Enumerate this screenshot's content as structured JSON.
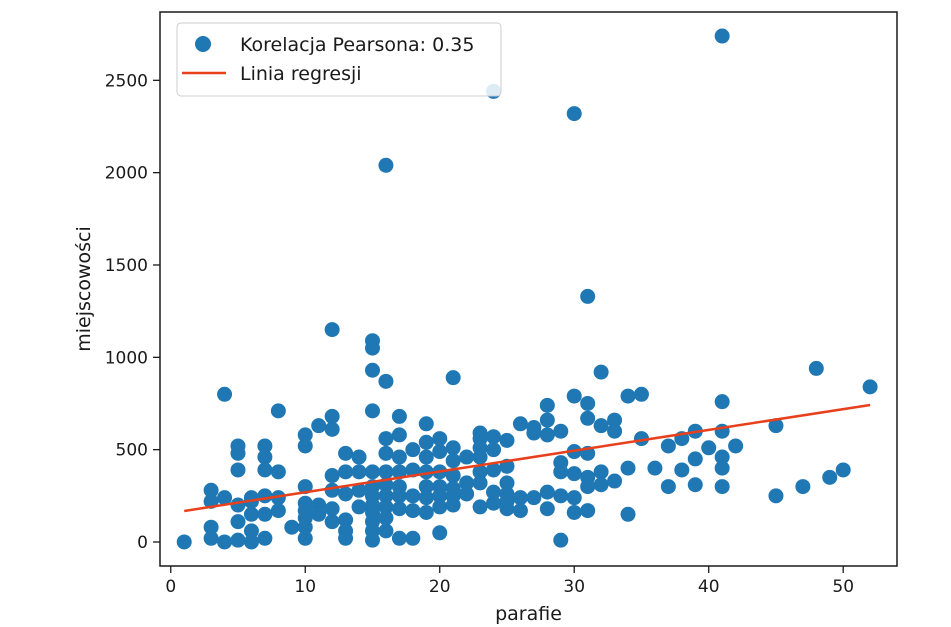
{
  "chart_data": {
    "type": "scatter",
    "xlabel": "parafie",
    "ylabel": "miejscowości",
    "xlim": [
      -0.8,
      54.0
    ],
    "ylim": [
      -130,
      2870
    ],
    "xticks": [
      0,
      10,
      20,
      30,
      40,
      50
    ],
    "yticks": [
      0,
      500,
      1000,
      1500,
      2000,
      2500
    ],
    "grid": false,
    "legend": {
      "placement": "top-left",
      "entries": [
        {
          "label": "Korelacja Pearsona: 0.35",
          "marker": "circle",
          "color": "#1f77b4"
        },
        {
          "label": "Linia regresji",
          "marker": "line",
          "color": "#e8401c"
        }
      ]
    },
    "series": [
      {
        "name": "Korelacja Pearsona: 0.35",
        "kind": "scatter",
        "color": "#1f77b4",
        "points": [
          [
            1,
            0
          ],
          [
            3,
            280
          ],
          [
            3,
            220
          ],
          [
            3,
            80
          ],
          [
            3,
            20
          ],
          [
            4,
            800
          ],
          [
            4,
            240
          ],
          [
            4,
            0
          ],
          [
            5,
            520
          ],
          [
            5,
            480
          ],
          [
            5,
            390
          ],
          [
            5,
            200
          ],
          [
            5,
            110
          ],
          [
            5,
            10
          ],
          [
            6,
            240
          ],
          [
            6,
            220
          ],
          [
            6,
            150
          ],
          [
            6,
            60
          ],
          [
            6,
            0
          ],
          [
            7,
            520
          ],
          [
            7,
            460
          ],
          [
            7,
            390
          ],
          [
            7,
            250
          ],
          [
            7,
            150
          ],
          [
            7,
            20
          ],
          [
            8,
            710
          ],
          [
            8,
            380
          ],
          [
            8,
            240
          ],
          [
            8,
            170
          ],
          [
            9,
            80
          ],
          [
            10,
            580
          ],
          [
            10,
            520
          ],
          [
            10,
            300
          ],
          [
            10,
            210
          ],
          [
            10,
            170
          ],
          [
            10,
            130
          ],
          [
            10,
            80
          ],
          [
            10,
            20
          ],
          [
            11,
            630
          ],
          [
            11,
            200
          ],
          [
            11,
            150
          ],
          [
            12,
            1150
          ],
          [
            12,
            680
          ],
          [
            12,
            610
          ],
          [
            12,
            360
          ],
          [
            12,
            280
          ],
          [
            12,
            180
          ],
          [
            12,
            110
          ],
          [
            13,
            480
          ],
          [
            13,
            380
          ],
          [
            13,
            260
          ],
          [
            13,
            120
          ],
          [
            13,
            60
          ],
          [
            13,
            20
          ],
          [
            14,
            460
          ],
          [
            14,
            380
          ],
          [
            14,
            280
          ],
          [
            14,
            190
          ],
          [
            15,
            1090
          ],
          [
            15,
            1050
          ],
          [
            15,
            930
          ],
          [
            15,
            710
          ],
          [
            15,
            380
          ],
          [
            15,
            300
          ],
          [
            15,
            250
          ],
          [
            15,
            200
          ],
          [
            15,
            160
          ],
          [
            15,
            110
          ],
          [
            15,
            60
          ],
          [
            15,
            10
          ],
          [
            16,
            870
          ],
          [
            16,
            2040
          ],
          [
            16,
            560
          ],
          [
            16,
            480
          ],
          [
            16,
            380
          ],
          [
            16,
            310
          ],
          [
            16,
            250
          ],
          [
            16,
            190
          ],
          [
            16,
            130
          ],
          [
            16,
            60
          ],
          [
            17,
            680
          ],
          [
            17,
            580
          ],
          [
            17,
            460
          ],
          [
            17,
            380
          ],
          [
            17,
            300
          ],
          [
            17,
            250
          ],
          [
            17,
            180
          ],
          [
            17,
            20
          ],
          [
            18,
            500
          ],
          [
            18,
            390
          ],
          [
            18,
            250
          ],
          [
            18,
            170
          ],
          [
            18,
            20
          ],
          [
            19,
            640
          ],
          [
            19,
            540
          ],
          [
            19,
            460
          ],
          [
            19,
            380
          ],
          [
            19,
            300
          ],
          [
            19,
            240
          ],
          [
            19,
            160
          ],
          [
            20,
            560
          ],
          [
            20,
            490
          ],
          [
            20,
            380
          ],
          [
            20,
            300
          ],
          [
            20,
            250
          ],
          [
            20,
            190
          ],
          [
            20,
            50
          ],
          [
            21,
            890
          ],
          [
            21,
            510
          ],
          [
            21,
            440
          ],
          [
            21,
            360
          ],
          [
            21,
            290
          ],
          [
            21,
            250
          ],
          [
            21,
            200
          ],
          [
            22,
            460
          ],
          [
            22,
            320
          ],
          [
            22,
            260
          ],
          [
            23,
            590
          ],
          [
            23,
            560
          ],
          [
            23,
            510
          ],
          [
            23,
            460
          ],
          [
            23,
            380
          ],
          [
            23,
            320
          ],
          [
            23,
            190
          ],
          [
            24,
            2440
          ],
          [
            24,
            570
          ],
          [
            24,
            500
          ],
          [
            24,
            390
          ],
          [
            24,
            270
          ],
          [
            24,
            210
          ],
          [
            25,
            550
          ],
          [
            25,
            410
          ],
          [
            25,
            320
          ],
          [
            25,
            260
          ],
          [
            25,
            220
          ],
          [
            25,
            180
          ],
          [
            26,
            640
          ],
          [
            26,
            240
          ],
          [
            26,
            170
          ],
          [
            27,
            620
          ],
          [
            27,
            590
          ],
          [
            27,
            240
          ],
          [
            28,
            740
          ],
          [
            28,
            660
          ],
          [
            28,
            580
          ],
          [
            28,
            270
          ],
          [
            28,
            180
          ],
          [
            29,
            600
          ],
          [
            29,
            430
          ],
          [
            29,
            380
          ],
          [
            29,
            250
          ],
          [
            29,
            10
          ],
          [
            30,
            2320
          ],
          [
            30,
            790
          ],
          [
            30,
            490
          ],
          [
            30,
            370
          ],
          [
            30,
            240
          ],
          [
            30,
            160
          ],
          [
            31,
            1330
          ],
          [
            31,
            750
          ],
          [
            31,
            670
          ],
          [
            31,
            480
          ],
          [
            31,
            350
          ],
          [
            31,
            300
          ],
          [
            31,
            170
          ],
          [
            32,
            920
          ],
          [
            32,
            630
          ],
          [
            32,
            380
          ],
          [
            32,
            310
          ],
          [
            33,
            660
          ],
          [
            33,
            600
          ],
          [
            33,
            330
          ],
          [
            34,
            790
          ],
          [
            34,
            400
          ],
          [
            34,
            150
          ],
          [
            35,
            800
          ],
          [
            35,
            560
          ],
          [
            36,
            400
          ],
          [
            37,
            520
          ],
          [
            37,
            300
          ],
          [
            38,
            560
          ],
          [
            38,
            390
          ],
          [
            39,
            600
          ],
          [
            39,
            450
          ],
          [
            39,
            310
          ],
          [
            40,
            510
          ],
          [
            41,
            2740
          ],
          [
            41,
            760
          ],
          [
            41,
            600
          ],
          [
            41,
            460
          ],
          [
            41,
            400
          ],
          [
            41,
            300
          ],
          [
            42,
            520
          ],
          [
            45,
            630
          ],
          [
            45,
            250
          ],
          [
            47,
            300
          ],
          [
            48,
            940
          ],
          [
            49,
            350
          ],
          [
            50,
            390
          ],
          [
            52,
            840
          ]
        ]
      },
      {
        "name": "Linia regresji",
        "kind": "line",
        "color": "#e8401c",
        "points": [
          [
            1,
            168
          ],
          [
            52,
            742
          ]
        ]
      }
    ]
  }
}
